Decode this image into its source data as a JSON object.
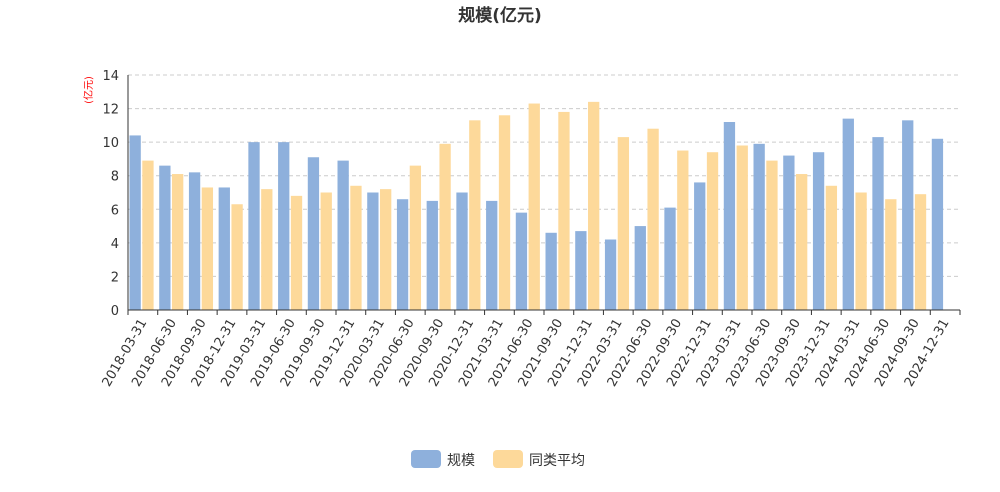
{
  "chart_data": {
    "type": "bar",
    "title": "规模(亿元)",
    "ylabel": "(亿元)",
    "xlabel": "",
    "ylim": [
      0,
      14
    ],
    "yticks": [
      0,
      2,
      4,
      6,
      8,
      10,
      12,
      14
    ],
    "grid": true,
    "legend_position": "bottom-center",
    "categories": [
      "2018-03-31",
      "2018-06-30",
      "2018-09-30",
      "2018-12-31",
      "2019-03-31",
      "2019-06-30",
      "2019-09-30",
      "2019-12-31",
      "2020-03-31",
      "2020-06-30",
      "2020-09-30",
      "2020-12-31",
      "2021-03-31",
      "2021-06-30",
      "2021-09-30",
      "2021-12-31",
      "2022-03-31",
      "2022-06-30",
      "2022-09-30",
      "2022-12-31",
      "2023-03-31",
      "2023-06-30",
      "2023-09-30",
      "2023-12-31",
      "2024-03-31",
      "2024-06-30",
      "2024-09-30",
      "2024-12-31"
    ],
    "series": [
      {
        "name": "规模",
        "color": "#8eb0dc",
        "values": [
          10.4,
          8.6,
          8.2,
          7.3,
          10.0,
          10.0,
          9.1,
          8.9,
          7.0,
          6.6,
          6.5,
          7.0,
          6.5,
          5.8,
          4.6,
          4.7,
          4.2,
          5.0,
          6.1,
          7.6,
          11.2,
          9.9,
          9.2,
          9.4,
          11.4,
          10.3,
          11.3,
          10.2
        ]
      },
      {
        "name": "同类平均",
        "color": "#fdd99a",
        "values": [
          8.9,
          8.1,
          7.3,
          6.3,
          7.2,
          6.8,
          7.0,
          7.4,
          7.2,
          8.6,
          9.9,
          11.3,
          11.6,
          12.3,
          11.8,
          12.4,
          10.3,
          10.8,
          9.5,
          9.4,
          9.8,
          8.9,
          8.1,
          7.4,
          7.0,
          6.6,
          6.9,
          null
        ]
      }
    ]
  },
  "colors": {
    "title": "#333333",
    "axis_text": "#333333",
    "ylabel": "#ff0000",
    "grid": "#cccccc",
    "axis_line": "#333333"
  }
}
